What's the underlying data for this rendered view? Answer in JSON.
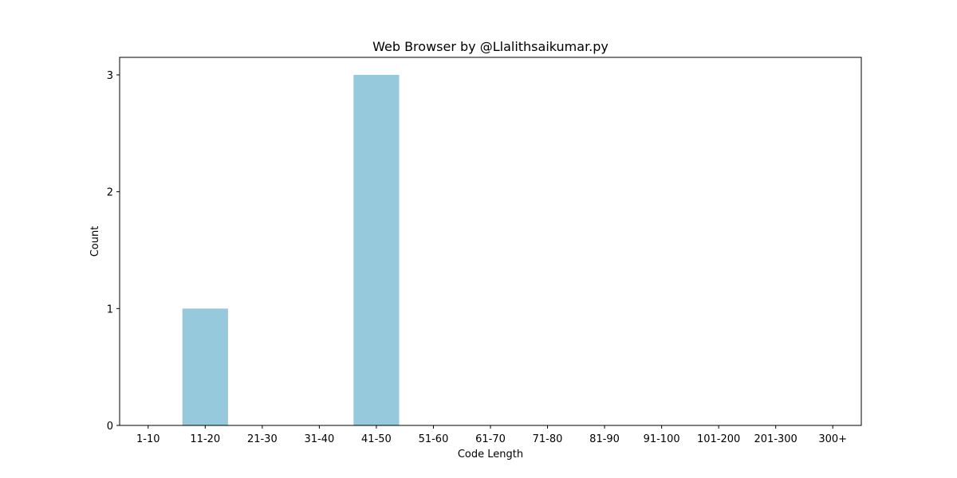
{
  "chart_data": {
    "type": "bar",
    "title": "Web Browser by @Llalithsaikumar.py",
    "xlabel": "Code Length",
    "ylabel": "Count",
    "categories": [
      "1-10",
      "11-20",
      "21-30",
      "31-40",
      "41-50",
      "51-60",
      "61-70",
      "71-80",
      "81-90",
      "91-100",
      "101-200",
      "201-300",
      "300+"
    ],
    "values": [
      0,
      1,
      0,
      0,
      3,
      0,
      0,
      0,
      0,
      0,
      0,
      0,
      0
    ],
    "ylim": [
      0,
      3.15
    ],
    "yticks": [
      0,
      1,
      2,
      3
    ],
    "bar_color": "#96c9dc",
    "grid": false,
    "legend": "none"
  }
}
